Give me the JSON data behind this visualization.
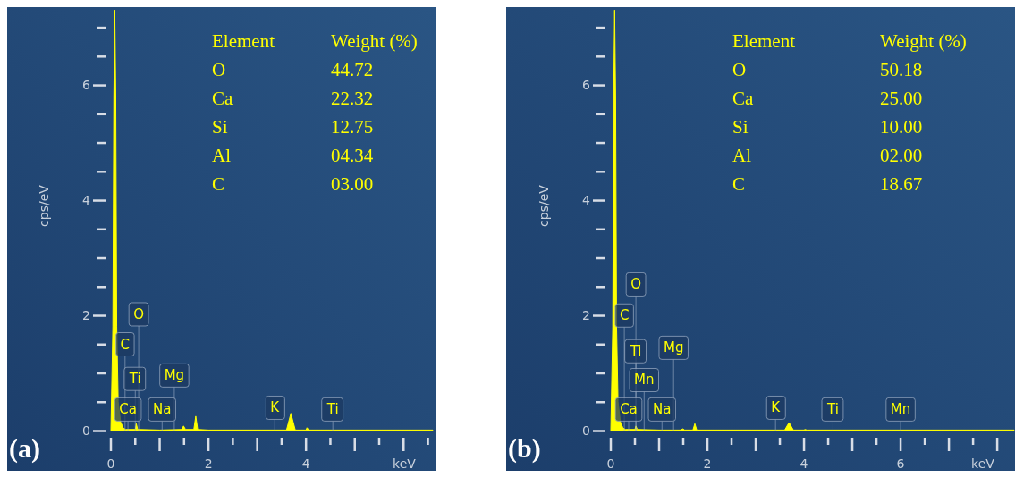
{
  "chart_data": [
    {
      "type": "area",
      "title": "(a)",
      "xlabel": "keV",
      "ylabel": "cps/eV",
      "color": "#ffff00",
      "x": [
        0,
        0.04,
        0.06,
        0.08,
        0.1,
        0.12,
        0.15,
        0.2,
        0.25,
        0.3,
        0.5,
        0.52,
        0.55,
        1.0,
        1.45,
        1.49,
        1.53,
        1.7,
        1.74,
        1.78,
        2.0,
        3.6,
        3.69,
        3.78,
        4.0,
        4.02,
        4.06,
        6.6
      ],
      "values": [
        0,
        1.8,
        5.8,
        7.3,
        5.8,
        1.8,
        0.5,
        0.15,
        0.05,
        0.02,
        0.02,
        0.12,
        0.02,
        0.01,
        0.02,
        0.08,
        0.02,
        0.02,
        0.25,
        0.02,
        0.01,
        0.01,
        0.3,
        0.01,
        0.01,
        0.05,
        0.01,
        0.01
      ],
      "xlim": [
        0,
        6.6
      ],
      "ylim": [
        0,
        7.35
      ],
      "xticks": [
        0,
        {
          "value": 0.5,
          "label": null
        },
        {
          "value": 1,
          "label": null
        },
        {
          "value": 1.5,
          "label": null
        },
        2,
        {
          "value": 2.5,
          "label": null
        },
        {
          "value": 3,
          "label": null
        },
        {
          "value": 3.5,
          "label": null
        },
        4,
        {
          "value": 4.5,
          "label": null
        },
        {
          "value": 5,
          "label": null
        },
        {
          "value": 5.5,
          "label": null
        },
        {
          "value": 6,
          "label": null
        },
        {
          "value": 6.5,
          "label": null
        }
      ],
      "yticks": [
        0,
        {
          "value": 0.5,
          "label": null
        },
        {
          "value": 1,
          "label": null
        },
        {
          "value": 1.5,
          "label": null
        },
        2,
        {
          "value": 2.5,
          "label": null
        },
        {
          "value": 3,
          "label": null
        },
        {
          "value": 3.5,
          "label": null
        },
        4,
        {
          "value": 4.5,
          "label": null
        },
        {
          "value": 5,
          "label": null
        },
        {
          "value": 5.5,
          "label": null
        },
        6,
        {
          "value": 6.5,
          "label": null
        },
        {
          "value": 7,
          "label": null
        }
      ],
      "annotations": [
        "Element",
        "Weight (%)",
        "O",
        "44.72",
        "Ca",
        "22.32",
        "Si",
        "12.75",
        "Al",
        "04.34",
        "C",
        "03.00",
        {
          "text": "O",
          "x": 0.57,
          "y": 2.02
        },
        {
          "text": "C",
          "x": 0.29,
          "y": 1.5
        },
        {
          "text": "Ti",
          "x": 0.5,
          "y": 0.9
        },
        {
          "text": "Mg",
          "x": 1.3,
          "y": 0.96
        },
        {
          "text": "Ca",
          "x": 0.35,
          "y": 0.37
        },
        {
          "text": "Na",
          "x": 1.05,
          "y": 0.37
        },
        {
          "text": "K",
          "x": 3.36,
          "y": 0.4
        },
        {
          "text": "Ti",
          "x": 4.55,
          "y": 0.37
        }
      ]
    },
    {
      "type": "area",
      "title": "(b)",
      "xlabel": "keV",
      "ylabel": "cps/eV",
      "color": "#ffff00",
      "x": [
        0,
        0.04,
        0.06,
        0.08,
        0.1,
        0.12,
        0.15,
        0.2,
        0.25,
        0.3,
        0.5,
        0.52,
        0.55,
        1.0,
        1.45,
        1.49,
        1.53,
        1.7,
        1.74,
        1.78,
        2.0,
        3.6,
        3.69,
        3.78,
        4.0,
        4.02,
        4.06,
        8.35
      ],
      "values": [
        0,
        1.8,
        5.8,
        7.3,
        5.8,
        1.8,
        0.5,
        0.15,
        0.05,
        0.02,
        0.02,
        0.08,
        0.02,
        0.01,
        0.01,
        0.03,
        0.01,
        0.01,
        0.12,
        0.01,
        0.01,
        0.01,
        0.14,
        0.01,
        0.01,
        0.02,
        0.01,
        0.01
      ],
      "xlim": [
        0,
        8.35
      ],
      "ylim": [
        0,
        7.35
      ],
      "xticks": [
        0,
        {
          "value": 0.5,
          "label": null
        },
        {
          "value": 1,
          "label": null
        },
        {
          "value": 1.5,
          "label": null
        },
        2,
        {
          "value": 2.5,
          "label": null
        },
        {
          "value": 3,
          "label": null
        },
        {
          "value": 3.5,
          "label": null
        },
        4,
        {
          "value": 4.5,
          "label": null
        },
        {
          "value": 5,
          "label": null
        },
        {
          "value": 5.5,
          "label": null
        },
        6,
        {
          "value": 6.5,
          "label": null
        },
        {
          "value": 7,
          "label": null
        },
        {
          "value": 7.5,
          "label": null
        },
        {
          "value": 8,
          "label": null
        }
      ],
      "yticks": [
        0,
        {
          "value": 0.5,
          "label": null
        },
        {
          "value": 1,
          "label": null
        },
        {
          "value": 1.5,
          "label": null
        },
        2,
        {
          "value": 2.5,
          "label": null
        },
        {
          "value": 3,
          "label": null
        },
        {
          "value": 3.5,
          "label": null
        },
        4,
        {
          "value": 4.5,
          "label": null
        },
        {
          "value": 5,
          "label": null
        },
        {
          "value": 5.5,
          "label": null
        },
        6,
        {
          "value": 6.5,
          "label": null
        },
        {
          "value": 7,
          "label": null
        }
      ],
      "annotations": [
        "Element",
        "Weight (%)",
        "O",
        "50.18",
        "Ca",
        "25.00",
        "Si",
        "10.00",
        "Al",
        "02.00",
        "C",
        "18.67",
        {
          "text": "O",
          "x": 0.52,
          "y": 2.54
        },
        {
          "text": "C",
          "x": 0.28,
          "y": 2.0
        },
        {
          "text": "Ti",
          "x": 0.52,
          "y": 1.38
        },
        {
          "text": "Mg",
          "x": 1.3,
          "y": 1.44
        },
        {
          "text": "Mn",
          "x": 0.69,
          "y": 0.88
        },
        {
          "text": "Ca",
          "x": 0.37,
          "y": 0.37
        },
        {
          "text": "Na",
          "x": 1.06,
          "y": 0.37
        },
        {
          "text": "K",
          "x": 3.41,
          "y": 0.4
        },
        {
          "text": "Ti",
          "x": 4.6,
          "y": 0.37
        },
        {
          "text": "Mn",
          "x": 6.0,
          "y": 0.37
        }
      ]
    }
  ]
}
